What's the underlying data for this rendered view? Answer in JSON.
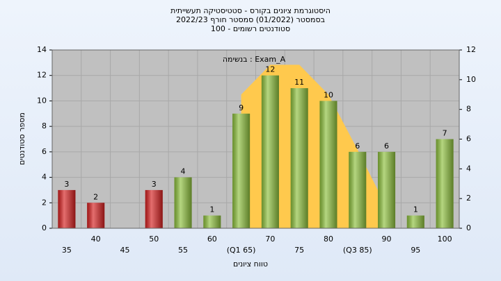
{
  "chart_data": {
    "type": "bar",
    "title": [
      "היסטוגרמת ציונים בקורס - סטטיסטיקה תעשייתית",
      "בסמסטר  (01/2022)  סמסטר חורף 2022/23",
      "סטודנטים רשומים - 100"
    ],
    "annotation": "בנשימה : Exam_A",
    "x_label": "טווח ציונים",
    "y_label": "מספר סטודנטים",
    "categories": [
      "35",
      "40",
      "45",
      "50",
      "55",
      "60",
      "(Q1 65)",
      "70",
      "75",
      "80",
      "(Q3 85)",
      "90",
      "95",
      "100"
    ],
    "values": [
      3,
      2,
      null,
      3,
      4,
      1,
      9,
      12,
      11,
      10,
      6,
      6,
      1,
      7
    ],
    "colors": [
      "#d62020",
      "#d62020",
      null,
      "#d62020",
      "#8dc03c",
      "#8dc03c",
      "#8dc03c",
      "#8dc03c",
      "#8dc03c",
      "#8dc03c",
      "#8dc03c",
      "#8dc03c",
      "#8dc03c",
      "#8dc03c"
    ],
    "overlay": {
      "axis": "y2",
      "color": "#ffc94d",
      "values": [
        null,
        null,
        null,
        null,
        null,
        null,
        9,
        11,
        11,
        9,
        5.3,
        1.4,
        null,
        null
      ]
    },
    "ylim": [
      0,
      14
    ],
    "yticks": [
      0,
      2,
      4,
      6,
      8,
      10,
      12,
      14
    ],
    "y2lim": [
      0,
      12
    ],
    "y2ticks": [
      0,
      2,
      4,
      6,
      8,
      10,
      12
    ],
    "grid": true
  }
}
